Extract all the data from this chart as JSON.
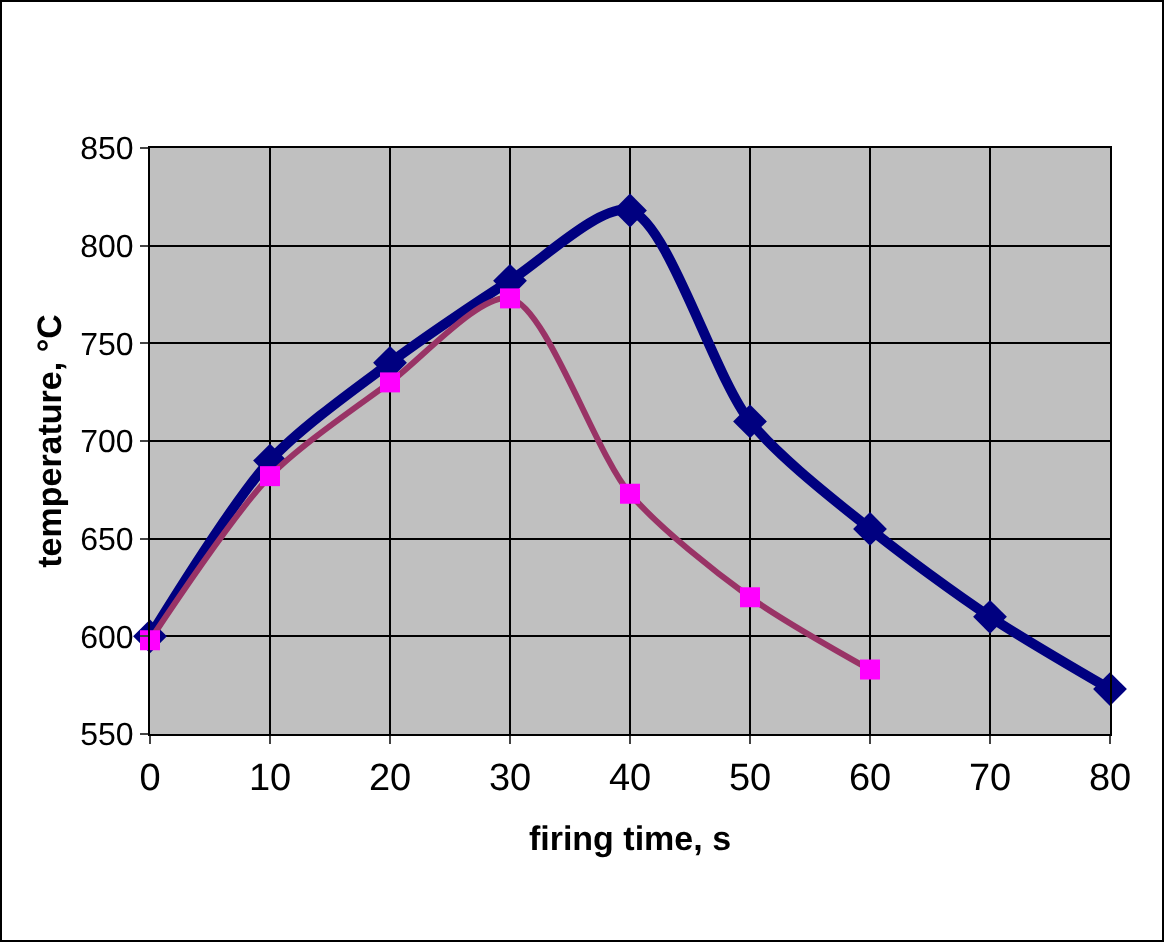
{
  "chart_data": {
    "type": "line",
    "xlabel": "firing time, s",
    "ylabel": "temperature, °C",
    "x": [
      0,
      10,
      20,
      30,
      40,
      50,
      60,
      70,
      80
    ],
    "series": [
      {
        "color": "#000080",
        "marker": "diamond",
        "values": [
          600,
          690,
          740,
          782,
          818,
          710,
          655,
          610,
          573
        ]
      },
      {
        "color": "#ff00ff",
        "marker": "square",
        "values": [
          598,
          682,
          730,
          773,
          673,
          620,
          583,
          null,
          null
        ]
      }
    ],
    "xlim": [
      0,
      80
    ],
    "xticks": [
      0,
      10,
      20,
      30,
      40,
      50,
      60,
      70,
      80
    ],
    "ylim": [
      550,
      850
    ],
    "yticks": [
      550,
      600,
      650,
      700,
      750,
      800,
      850
    ],
    "grid": true,
    "line_style": "solid"
  }
}
